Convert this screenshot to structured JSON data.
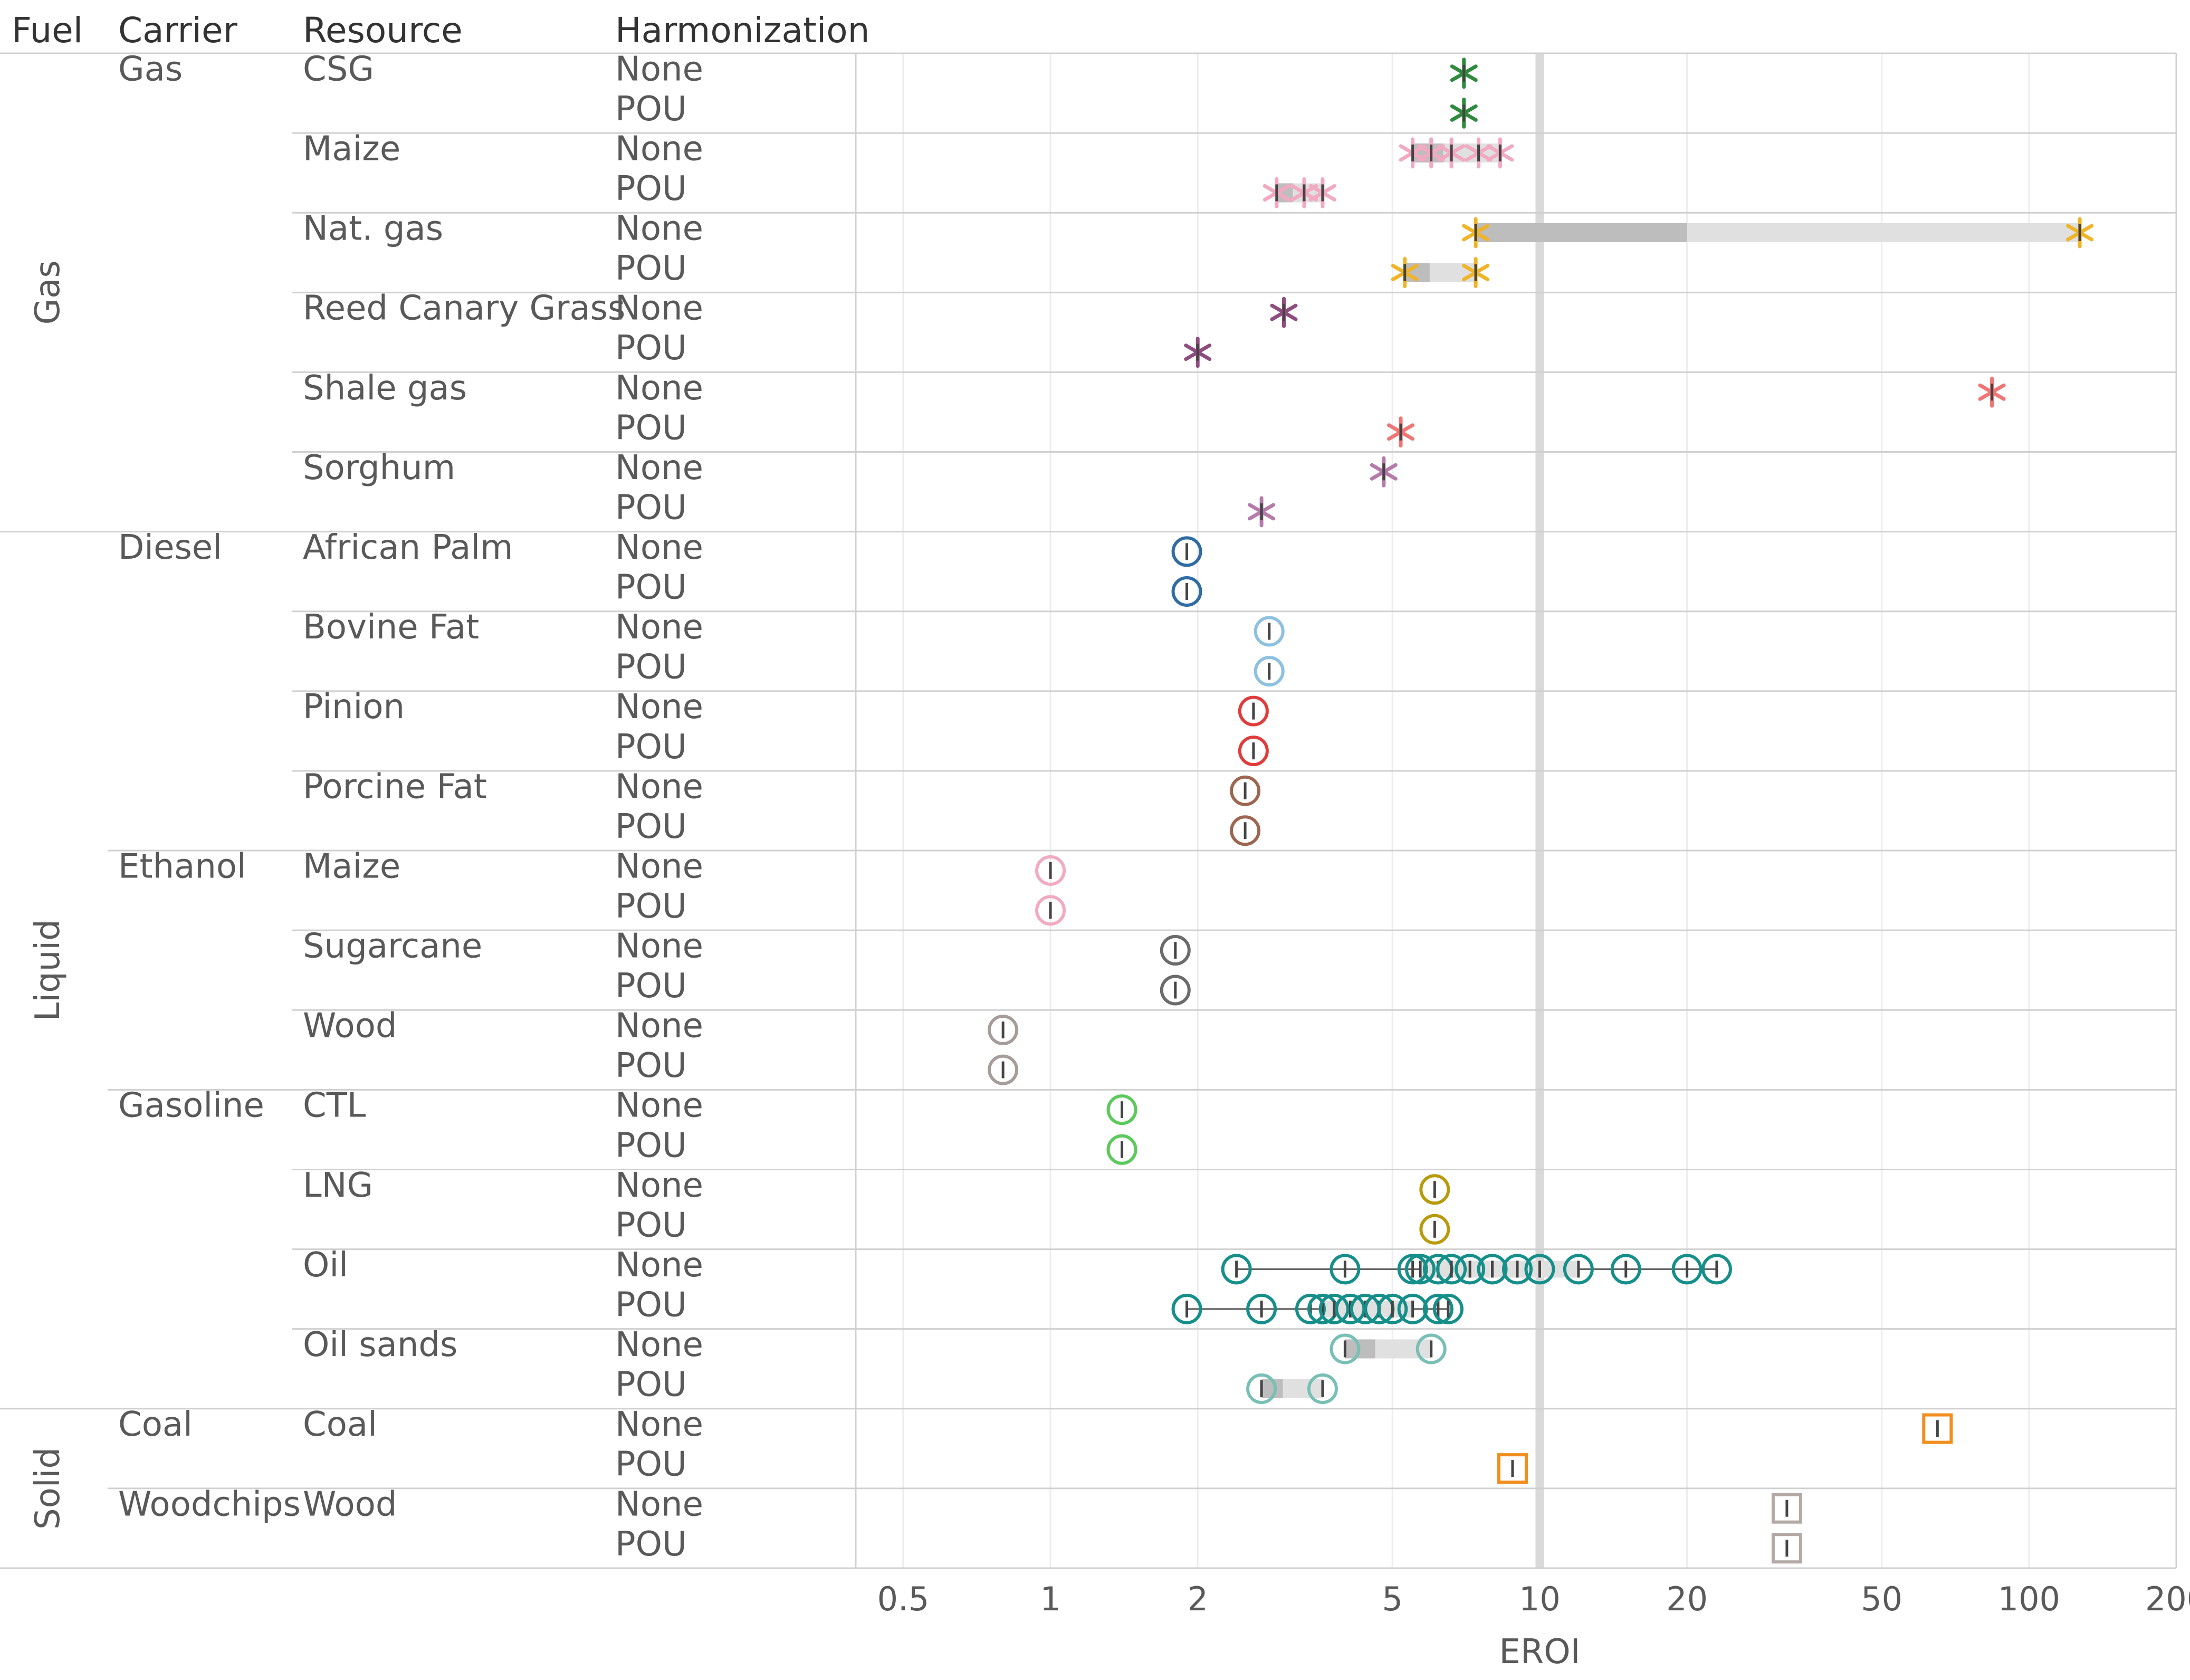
{
  "chart_data": {
    "type": "scatter",
    "xscale": "log",
    "xlim": [
      0.4,
      200
    ],
    "xticks": [
      0.5,
      1,
      2,
      5,
      10,
      20,
      50,
      100,
      200
    ],
    "xtick_labels": [
      "0.5",
      "1",
      "2",
      "5",
      "10",
      "20",
      "50",
      "100",
      "200"
    ],
    "xlabel": "EROI",
    "reference_line": 10,
    "grid": "vertical",
    "headers": [
      "Fuel",
      "Carrier",
      "Resource",
      "Harmonization"
    ],
    "colors": {
      "range_bar_light": "#e0e0e0",
      "range_bar_dark": "#bdbdbd",
      "reference_line": "#d9d9d9",
      "grid": "#ededed"
    },
    "groups": [
      {
        "fuel": "Gas",
        "carrier": "Gas",
        "resource": "CSG",
        "marker": "asterisk",
        "color": "#2e8b3e",
        "rows": [
          {
            "harmonization": "None",
            "points": [
              7
            ]
          },
          {
            "harmonization": "POU",
            "points": [
              7
            ]
          }
        ]
      },
      {
        "fuel": "Gas",
        "carrier": "Gas",
        "resource": "Maize",
        "marker": "asterisk",
        "color": "#f2a9c2",
        "rows": [
          {
            "harmonization": "None",
            "points": [
              5.5,
              6,
              6.6,
              7.5,
              8.3
            ]
          },
          {
            "harmonization": "POU",
            "points": [
              2.9,
              3.3,
              3.6
            ]
          }
        ]
      },
      {
        "fuel": "Gas",
        "carrier": "Gas",
        "resource": "Nat. gas",
        "marker": "asterisk",
        "color": "#f0b429",
        "rows": [
          {
            "harmonization": "None",
            "points": [
              7.4,
              127
            ]
          },
          {
            "harmonization": "POU",
            "points": [
              5.3,
              7.4
            ]
          }
        ]
      },
      {
        "fuel": "Gas",
        "carrier": "Gas",
        "resource": "Reed Canary Grass",
        "marker": "asterisk",
        "color": "#8e4d7e",
        "rows": [
          {
            "harmonization": "None",
            "points": [
              3.0
            ]
          },
          {
            "harmonization": "POU",
            "points": [
              2.0
            ]
          }
        ]
      },
      {
        "fuel": "Gas",
        "carrier": "Gas",
        "resource": "Shale gas",
        "marker": "asterisk",
        "color": "#f07575",
        "rows": [
          {
            "harmonization": "None",
            "points": [
              84
            ]
          },
          {
            "harmonization": "POU",
            "points": [
              5.2
            ]
          }
        ]
      },
      {
        "fuel": "Gas",
        "carrier": "Gas",
        "resource": "Sorghum",
        "marker": "asterisk",
        "color": "#b57bab",
        "rows": [
          {
            "harmonization": "None",
            "points": [
              4.8
            ]
          },
          {
            "harmonization": "POU",
            "points": [
              2.7
            ]
          }
        ]
      },
      {
        "fuel": "Liquid",
        "carrier": "Diesel",
        "resource": "African Palm",
        "marker": "circle",
        "color": "#2f6ca3",
        "rows": [
          {
            "harmonization": "None",
            "points": [
              1.9
            ]
          },
          {
            "harmonization": "POU",
            "points": [
              1.9
            ]
          }
        ]
      },
      {
        "fuel": "Liquid",
        "carrier": "Diesel",
        "resource": "Bovine Fat",
        "marker": "circle",
        "color": "#8cc1e0",
        "rows": [
          {
            "harmonization": "None",
            "points": [
              2.8
            ]
          },
          {
            "harmonization": "POU",
            "points": [
              2.8
            ]
          }
        ]
      },
      {
        "fuel": "Liquid",
        "carrier": "Diesel",
        "resource": "Pinion",
        "marker": "circle",
        "color": "#e03c3c",
        "rows": [
          {
            "harmonization": "None",
            "points": [
              2.6
            ]
          },
          {
            "harmonization": "POU",
            "points": [
              2.6
            ]
          }
        ]
      },
      {
        "fuel": "Liquid",
        "carrier": "Diesel",
        "resource": "Porcine Fat",
        "marker": "circle",
        "color": "#9c6650",
        "rows": [
          {
            "harmonization": "None",
            "points": [
              2.5
            ]
          },
          {
            "harmonization": "POU",
            "points": [
              2.5
            ]
          }
        ]
      },
      {
        "fuel": "Liquid",
        "carrier": "Ethanol",
        "resource": "Maize",
        "marker": "circle",
        "color": "#f2a9c2",
        "rows": [
          {
            "harmonization": "None",
            "points": [
              1.0
            ]
          },
          {
            "harmonization": "POU",
            "points": [
              1.0
            ]
          }
        ]
      },
      {
        "fuel": "Liquid",
        "carrier": "Ethanol",
        "resource": "Sugarcane",
        "marker": "circle",
        "color": "#6b6b6b",
        "rows": [
          {
            "harmonization": "None",
            "points": [
              1.8
            ]
          },
          {
            "harmonization": "POU",
            "points": [
              1.8
            ]
          }
        ]
      },
      {
        "fuel": "Liquid",
        "carrier": "Ethanol",
        "resource": "Wood",
        "marker": "circle",
        "color": "#a59d99",
        "rows": [
          {
            "harmonization": "None",
            "points": [
              0.8
            ]
          },
          {
            "harmonization": "POU",
            "points": [
              0.8
            ]
          }
        ]
      },
      {
        "fuel": "Liquid",
        "carrier": "Gasoline",
        "resource": "CTL",
        "marker": "circle",
        "color": "#5cc95c",
        "rows": [
          {
            "harmonization": "None",
            "points": [
              1.4
            ]
          },
          {
            "harmonization": "POU",
            "points": [
              1.4
            ]
          }
        ]
      },
      {
        "fuel": "Liquid",
        "carrier": "Gasoline",
        "resource": "LNG",
        "marker": "circle",
        "color": "#b89b0c",
        "rows": [
          {
            "harmonization": "None",
            "points": [
              6.1
            ]
          },
          {
            "harmonization": "POU",
            "points": [
              6.1
            ]
          }
        ]
      },
      {
        "fuel": "Liquid",
        "carrier": "Gasoline",
        "resource": "Oil",
        "marker": "circle",
        "color": "#168f8a",
        "rows": [
          {
            "harmonization": "None",
            "points": [
              2.4,
              4.0,
              5.5,
              5.7,
              6.2,
              6.6,
              7.2,
              8.0,
              9.0,
              10.0,
              12.0,
              15.0,
              20.0,
              23.0
            ]
          },
          {
            "harmonization": "POU",
            "points": [
              1.9,
              2.7,
              3.4,
              3.6,
              3.8,
              4.1,
              4.4,
              4.7,
              5.0,
              5.5,
              6.2,
              6.5
            ]
          }
        ]
      },
      {
        "fuel": "Liquid",
        "carrier": "Gasoline",
        "resource": "Oil sands",
        "marker": "circle",
        "color": "#78bfb5",
        "rows": [
          {
            "harmonization": "None",
            "points": [
              4.0,
              6.0
            ]
          },
          {
            "harmonization": "POU",
            "points": [
              2.7,
              3.6
            ]
          }
        ]
      },
      {
        "fuel": "Solid",
        "carrier": "Coal",
        "resource": "Coal",
        "marker": "square",
        "color": "#f28e1e",
        "rows": [
          {
            "harmonization": "None",
            "points": [
              65
            ]
          },
          {
            "harmonization": "POU",
            "points": [
              8.8
            ]
          }
        ]
      },
      {
        "fuel": "Solid",
        "carrier": "Woodchips",
        "resource": "Wood",
        "marker": "square",
        "color": "#b3a9a5",
        "rows": [
          {
            "harmonization": "None",
            "points": [
              32
            ]
          },
          {
            "harmonization": "POU",
            "points": [
              32
            ]
          }
        ]
      }
    ]
  }
}
